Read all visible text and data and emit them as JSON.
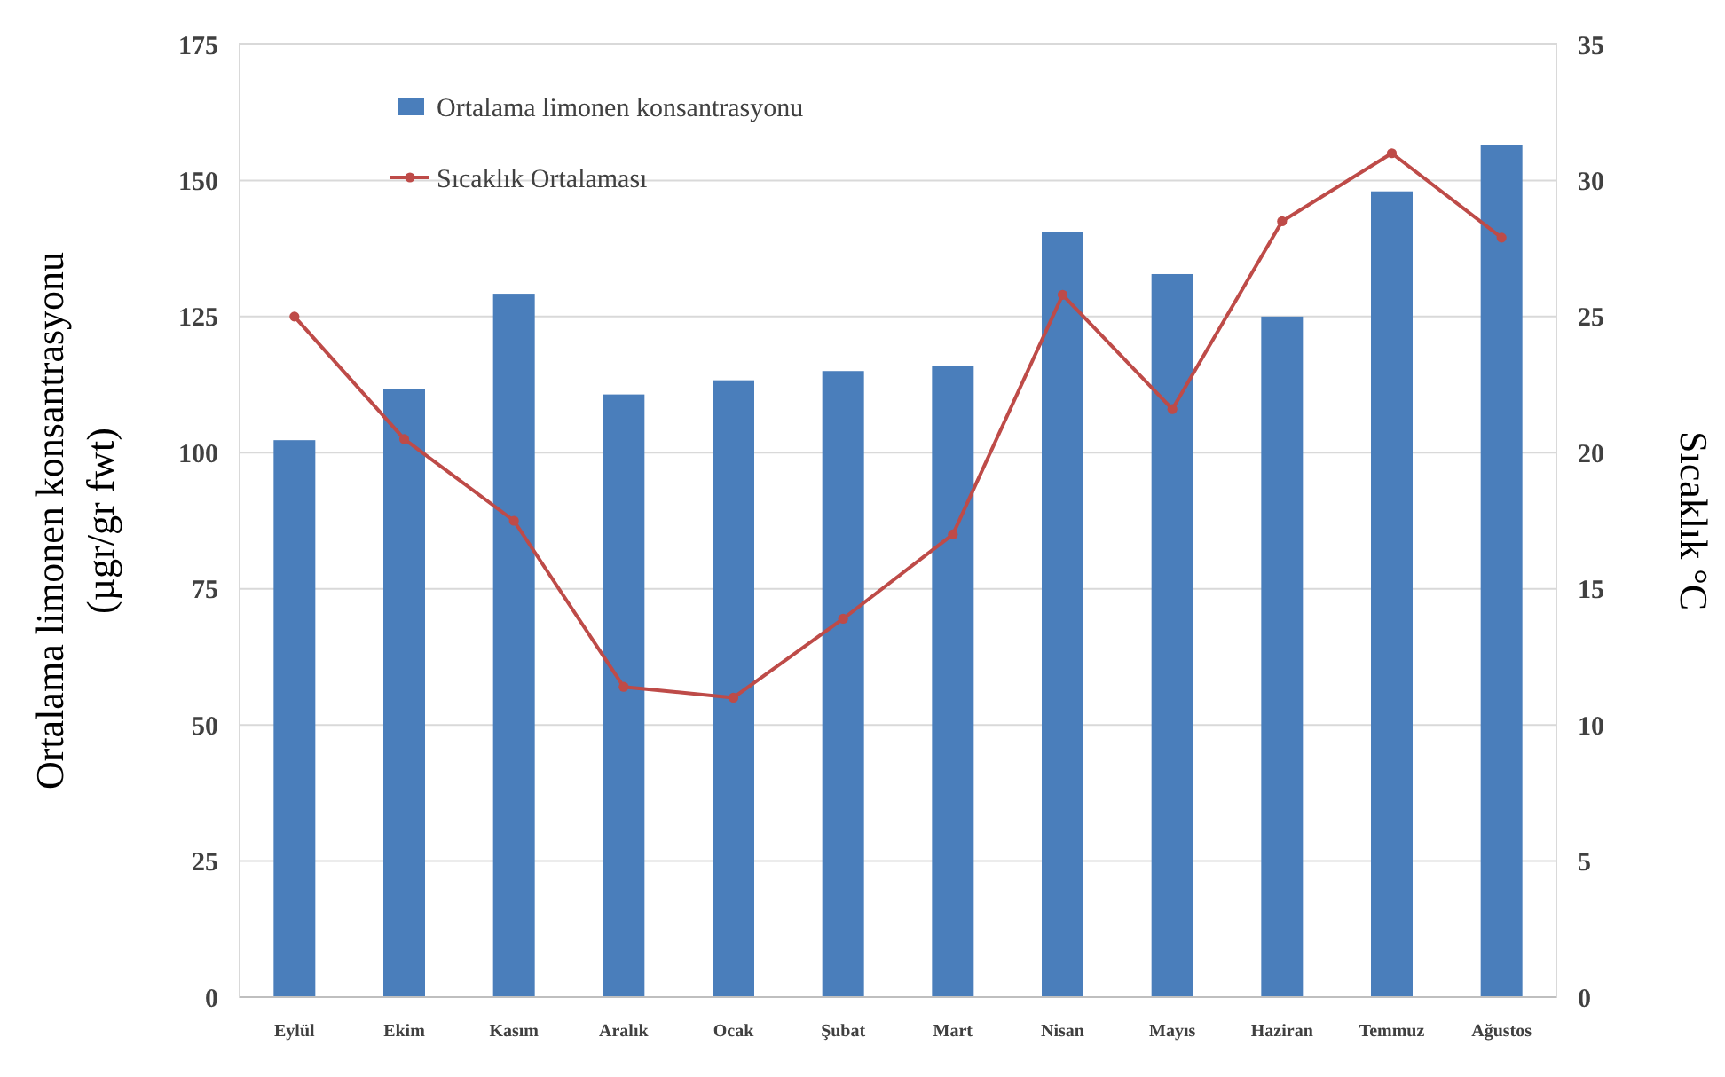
{
  "chart_data": {
    "type": "bar",
    "categories": [
      "Eylül",
      "Ekim",
      "Kasım",
      "Aralık",
      "Ocak",
      "Şubat",
      "Mart",
      "Nisan",
      "Mayıs",
      "Haziran",
      "Temmuz",
      "Ağustos"
    ],
    "series": [
      {
        "name": "Ortalama limonen konsantrasyonu",
        "color": "#4a7ebb",
        "values": [
          102.3,
          111.7,
          129.2,
          110.7,
          113.3,
          115,
          116,
          140.6,
          132.8,
          125,
          148,
          156.5
        ]
      },
      {
        "name": "Sıcaklık Ortalaması",
        "type": "line",
        "axis": "y2",
        "color": "#be4b48",
        "marker": "circle",
        "values": [
          25,
          20.5,
          17.5,
          11.4,
          11,
          13.9,
          17,
          25.8,
          21.6,
          28.5,
          31,
          27.9
        ]
      }
    ],
    "ylabel": "Ortalama limonen konsantrasyonu (µgr/gr fwt)",
    "y2label": "Sıcaklık °C",
    "ylim": [
      0,
      175
    ],
    "yticks": [
      0,
      25,
      50,
      75,
      100,
      125,
      150,
      175
    ],
    "y2lim": [
      0,
      35
    ],
    "y2ticks": [
      0,
      5,
      10,
      15,
      20,
      25,
      30,
      35
    ],
    "grid": "y",
    "legend": "top left"
  }
}
